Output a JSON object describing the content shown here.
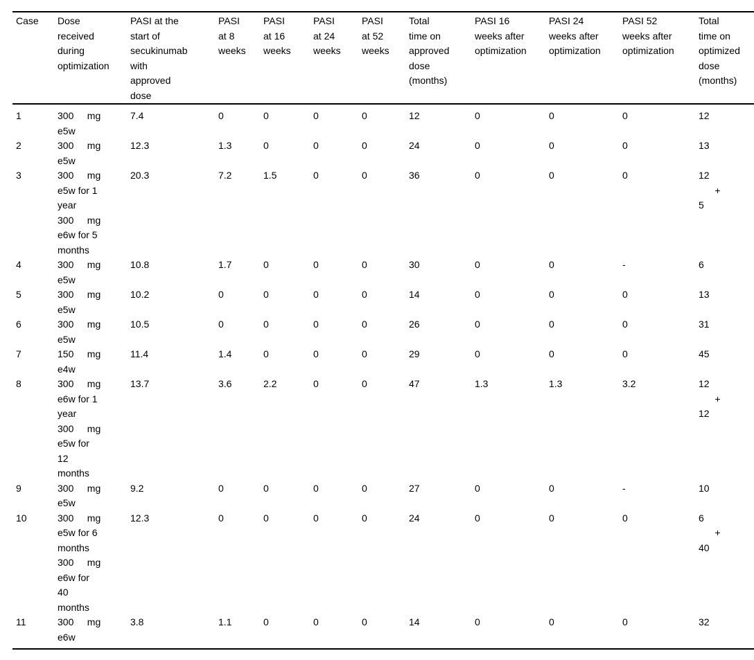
{
  "table": {
    "columns": [
      {
        "key": "case",
        "label": "Case"
      },
      {
        "key": "dose-received",
        "label": "Dose\nreceived\nduring\noptimization"
      },
      {
        "key": "pasi-start",
        "label": "PASI at the\nstart of\nsecukinumab\nwith\napproved\ndose"
      },
      {
        "key": "pasi-8w",
        "label": "PASI\nat 8\nweeks"
      },
      {
        "key": "pasi-16w",
        "label": "PASI\nat 16\nweeks"
      },
      {
        "key": "pasi-24w",
        "label": "PASI\nat 24\nweeks"
      },
      {
        "key": "pasi-52w",
        "label": "PASI\nat 52\nweeks"
      },
      {
        "key": "total-approved",
        "label": "Total\ntime on\napproved\ndose\n(months)"
      },
      {
        "key": "pasi-16w-post",
        "label": "PASI 16\nweeks after\noptimization"
      },
      {
        "key": "pasi-24w-post",
        "label": "PASI 24\nweeks after\noptimization"
      },
      {
        "key": "pasi-52w-post",
        "label": "PASI 52\nweeks after\noptimization"
      },
      {
        "key": "total-optimized",
        "label": "Total\ntime on\noptimized\ndose\n(months)"
      }
    ],
    "rows": [
      [
        "1",
        "300     mg\ne5w",
        "7.4",
        "0",
        "0",
        "0",
        "0",
        "12",
        "0",
        "0",
        "0",
        "12"
      ],
      [
        "2",
        "300     mg\ne5w",
        "12.3",
        "1.3",
        "0",
        "0",
        "0",
        "24",
        "0",
        "0",
        "0",
        "13"
      ],
      [
        "3",
        "300     mg\ne5w for 1\nyear\n300     mg\ne6w for 5\nmonths",
        "20.3",
        "7.2",
        "1.5",
        "0",
        "0",
        "36",
        "0",
        "0",
        "0",
        "12\n      +\n5"
      ],
      [
        "4",
        "300     mg\ne5w",
        "10.8",
        "1.7",
        "0",
        "0",
        "0",
        "30",
        "0",
        "0",
        "-",
        "6"
      ],
      [
        "5",
        "300     mg\ne5w",
        "10.2",
        "0",
        "0",
        "0",
        "0",
        "14",
        "0",
        "0",
        "0",
        "13"
      ],
      [
        "6",
        "300     mg\ne5w",
        "10.5",
        "0",
        "0",
        "0",
        "0",
        "26",
        "0",
        "0",
        "0",
        "31"
      ],
      [
        "7",
        "150     mg\ne4w",
        "11.4",
        "1.4",
        "0",
        "0",
        "0",
        "29",
        "0",
        "0",
        "0",
        "45"
      ],
      [
        "8",
        "300     mg\ne6w for 1\nyear\n300     mg\ne5w for\n12\nmonths",
        "13.7",
        "3.6",
        "2.2",
        "0",
        "0",
        "47",
        "1.3",
        "1.3",
        "3.2",
        "12\n      +\n12"
      ],
      [
        "9",
        "300     mg\ne5w",
        "9.2",
        "0",
        "0",
        "0",
        "0",
        "27",
        "0",
        "0",
        "-",
        "10"
      ],
      [
        "10",
        "300     mg\ne5w for 6\nmonths\n300     mg\ne6w for\n40\nmonths",
        "12.3",
        "0",
        "0",
        "0",
        "0",
        "24",
        "0",
        "0",
        "0",
        "6\n      +\n40"
      ],
      [
        "11",
        "300     mg\ne6w",
        "3.8",
        "1.1",
        "0",
        "0",
        "0",
        "14",
        "0",
        "0",
        "0",
        "32"
      ]
    ]
  }
}
